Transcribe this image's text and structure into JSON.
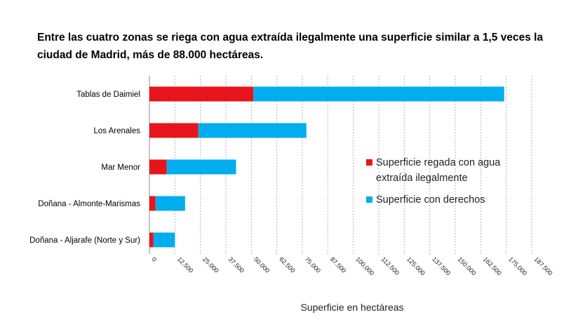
{
  "title": "Entre las cuatro zonas se riega con agua extraída ilegalmente una superficie similar a 1,5 veces la ciudad de Madrid, más de 88.000 hectáreas.",
  "chart_data": {
    "type": "bar",
    "orientation": "horizontal",
    "stacked": true,
    "title": "Entre las cuatro zonas se riega con agua extraída ilegalmente una superficie similar a 1,5 veces la ciudad de Madrid, más de 88.000 hectáreas.",
    "xlabel": "Superficie en hectáreas",
    "ylabel": "",
    "xlim": [
      0,
      187500
    ],
    "x_ticks": [
      0,
      12500,
      25000,
      37500,
      50000,
      62500,
      75000,
      87500,
      100000,
      112500,
      125000,
      137500,
      150000,
      162500,
      175000,
      187500
    ],
    "x_tick_labels": [
      "0",
      "12.500",
      "25.000",
      "37.500",
      "50.000",
      "62.500",
      "75.000",
      "87.500",
      "100.000",
      "112.500",
      "125.000",
      "137.500",
      "150.000",
      "162.500",
      "175.000",
      "187.500"
    ],
    "categories": [
      "Tablas de Daimiel",
      "Los Arenales",
      "Mar Menor",
      "Doñana - Almonte-Marismas",
      "Doñana - Aljarafe (Norte y Sur)"
    ],
    "series": [
      {
        "name": "Superficie regada con agua extraída ilegalmente",
        "color": "#e8141b",
        "values": [
          51000,
          24000,
          8500,
          3000,
          2000
        ]
      },
      {
        "name": "Superficie con derechos",
        "color": "#00aeef",
        "values": [
          123000,
          53000,
          34000,
          14500,
          10500
        ]
      }
    ],
    "grid": {
      "vertical": true,
      "style": "dashed",
      "color": "#b5b5b5"
    },
    "legend_position": "right",
    "legend": [
      {
        "lines": [
          "Superficie regada con agua",
          "extraída ilegalmente"
        ],
        "color": "#e8141b"
      },
      {
        "lines": [
          "Superficie con derechos"
        ],
        "color": "#00aeef"
      }
    ]
  }
}
